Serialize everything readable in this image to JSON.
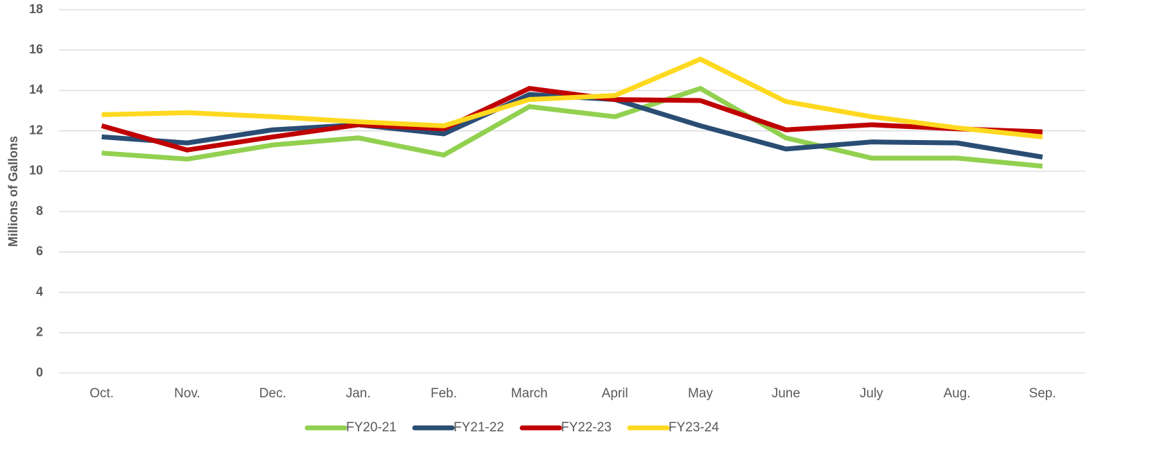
{
  "chart_data": {
    "type": "line",
    "y_label": "Millions of Gallons",
    "categories": [
      "Oct.",
      "Nov.",
      "Dec.",
      "Jan.",
      "Feb.",
      "March",
      "April",
      "May",
      "June",
      "July",
      "Aug.",
      "Sep."
    ],
    "series": [
      {
        "name": "FY20-21",
        "color": "#92d050",
        "values": [
          10.9,
          10.6,
          11.3,
          11.65,
          10.8,
          13.2,
          12.7,
          14.1,
          11.65,
          10.65,
          10.65,
          10.25
        ]
      },
      {
        "name": "FY21-22",
        "color": "#2a4d74",
        "values": [
          11.7,
          11.4,
          12.05,
          12.3,
          11.85,
          13.8,
          13.55,
          12.25,
          11.1,
          11.45,
          11.4,
          10.7
        ]
      },
      {
        "name": "FY22-23",
        "color": "#c00000",
        "values": [
          12.25,
          11.05,
          11.7,
          12.3,
          12.1,
          14.1,
          13.55,
          13.5,
          12.05,
          12.3,
          12.1,
          11.95
        ]
      },
      {
        "name": "FY23-24",
        "color": "#ffd920",
        "values": [
          12.8,
          12.9,
          12.7,
          12.45,
          12.25,
          13.55,
          13.75,
          15.55,
          13.45,
          12.7,
          12.15,
          11.7
        ]
      }
    ],
    "ylim": [
      0,
      18
    ],
    "yticks": [
      0,
      2,
      4,
      6,
      8,
      10,
      12,
      14,
      16,
      18
    ],
    "grid": true,
    "legend": "bottom"
  }
}
